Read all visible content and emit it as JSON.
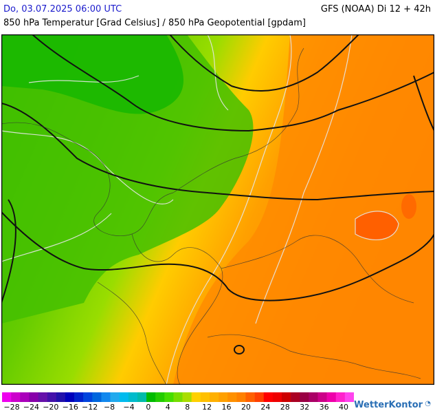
{
  "header": {
    "date": "Do, 03.07.2025 06:00 UTC",
    "model": "GFS (NOAA) Di 12 + 42h",
    "subtitle": "850 hPa Temperatur [Grad Celsius] / 850 hPa Geopotential [gpdam]"
  },
  "legend": {
    "ticks": [
      "−28",
      "−24",
      "−20",
      "−16",
      "−12",
      "−8",
      "−4",
      "0",
      "4",
      "8",
      "12",
      "16",
      "20",
      "24",
      "28",
      "32",
      "36",
      "40"
    ],
    "colors": [
      "#ee00ee",
      "#cc00cc",
      "#aa00bb",
      "#8800aa",
      "#6611aa",
      "#4411aa",
      "#2211aa",
      "#0000bb",
      "#0022cc",
      "#0044dd",
      "#0066dd",
      "#1188ee",
      "#22aaee",
      "#00bbee",
      "#00bbcc",
      "#00bbaa",
      "#00bb00",
      "#22cc00",
      "#44dd00",
      "#77dd00",
      "#aadd00",
      "#ffd000",
      "#ffc000",
      "#ffb000",
      "#ffa000",
      "#ff9000",
      "#ff8000",
      "#ff6000",
      "#ff4000",
      "#ff0000",
      "#ee0000",
      "#cc0000",
      "#aa0022",
      "#990044",
      "#aa0066",
      "#cc0088",
      "#ee00aa",
      "#ff22cc",
      "#ff44ee"
    ]
  },
  "brand": {
    "name": "WetterKontor",
    "logo_icon": "logo-icon"
  }
}
